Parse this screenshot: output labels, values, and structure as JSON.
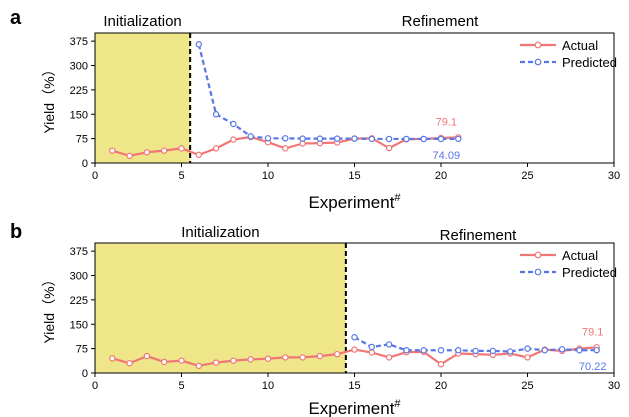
{
  "colors": {
    "actual": "#f07676",
    "predicted": "#5877e6",
    "init_fill": "#efe68a",
    "axis": "#000000"
  },
  "chart_data": [
    {
      "type": "line",
      "panel_label": "a",
      "regions": [
        "Initialization",
        "Refinement"
      ],
      "divider_x": 5.5,
      "xlabel": "Experiment",
      "xlabel_sup": "#",
      "ylabel": "Yield（%）",
      "xlim": [
        0,
        30
      ],
      "ylim": [
        0,
        400
      ],
      "x_ticks": [
        0,
        5,
        10,
        15,
        20,
        25,
        30
      ],
      "y_ticks": [
        0,
        75,
        150,
        225,
        300,
        375
      ],
      "legend_position": "top-right",
      "series": [
        {
          "name": "Actual",
          "x": [
            1,
            2,
            3,
            4,
            5,
            6,
            7,
            8,
            9,
            10,
            11,
            12,
            13,
            14,
            15,
            16,
            17,
            18,
            19,
            20,
            21
          ],
          "y": [
            38,
            22,
            33,
            38,
            45,
            25,
            45,
            72,
            80,
            64,
            45,
            60,
            61,
            63,
            75,
            76,
            46,
            73,
            74,
            77,
            79.1
          ]
        },
        {
          "name": "Predicted",
          "x": [
            6,
            7,
            8,
            9,
            10,
            11,
            12,
            13,
            14,
            15,
            16,
            17,
            18,
            19,
            20,
            21
          ],
          "y": [
            365,
            150,
            120,
            82,
            76,
            76,
            75,
            75,
            75,
            75,
            74,
            74,
            74,
            74,
            74,
            74.09
          ]
        }
      ],
      "end_labels": {
        "actual": "79.1",
        "predicted": "74.09"
      }
    },
    {
      "type": "line",
      "panel_label": "b",
      "regions": [
        "Initialization",
        "Refinement"
      ],
      "divider_x": 14.5,
      "xlabel": "Experiment",
      "xlabel_sup": "#",
      "ylabel": "Yield（%）",
      "xlim": [
        0,
        30
      ],
      "ylim": [
        0,
        400
      ],
      "x_ticks": [
        0,
        5,
        10,
        15,
        20,
        25,
        30
      ],
      "y_ticks": [
        0,
        75,
        150,
        225,
        300,
        375
      ],
      "legend_position": "top-right",
      "series": [
        {
          "name": "Actual",
          "x": [
            1,
            2,
            3,
            4,
            5,
            6,
            7,
            8,
            9,
            10,
            11,
            12,
            13,
            14,
            15,
            16,
            17,
            18,
            19,
            20,
            21,
            22,
            23,
            24,
            25,
            26,
            27,
            28,
            29
          ],
          "y": [
            45,
            30,
            52,
            34,
            38,
            22,
            32,
            38,
            42,
            44,
            48,
            48,
            52,
            58,
            72,
            63,
            48,
            64,
            65,
            27,
            60,
            58,
            56,
            60,
            48,
            72,
            68,
            75,
            79.1
          ]
        },
        {
          "name": "Predicted",
          "x": [
            15,
            16,
            17,
            18,
            19,
            20,
            21,
            22,
            23,
            24,
            25,
            26,
            27,
            28,
            29
          ],
          "y": [
            110,
            80,
            88,
            70,
            70,
            70,
            70,
            68,
            68,
            66,
            75,
            70,
            73,
            70,
            70.22
          ]
        }
      ],
      "end_labels": {
        "actual": "79.1",
        "predicted": "70.22"
      }
    }
  ]
}
